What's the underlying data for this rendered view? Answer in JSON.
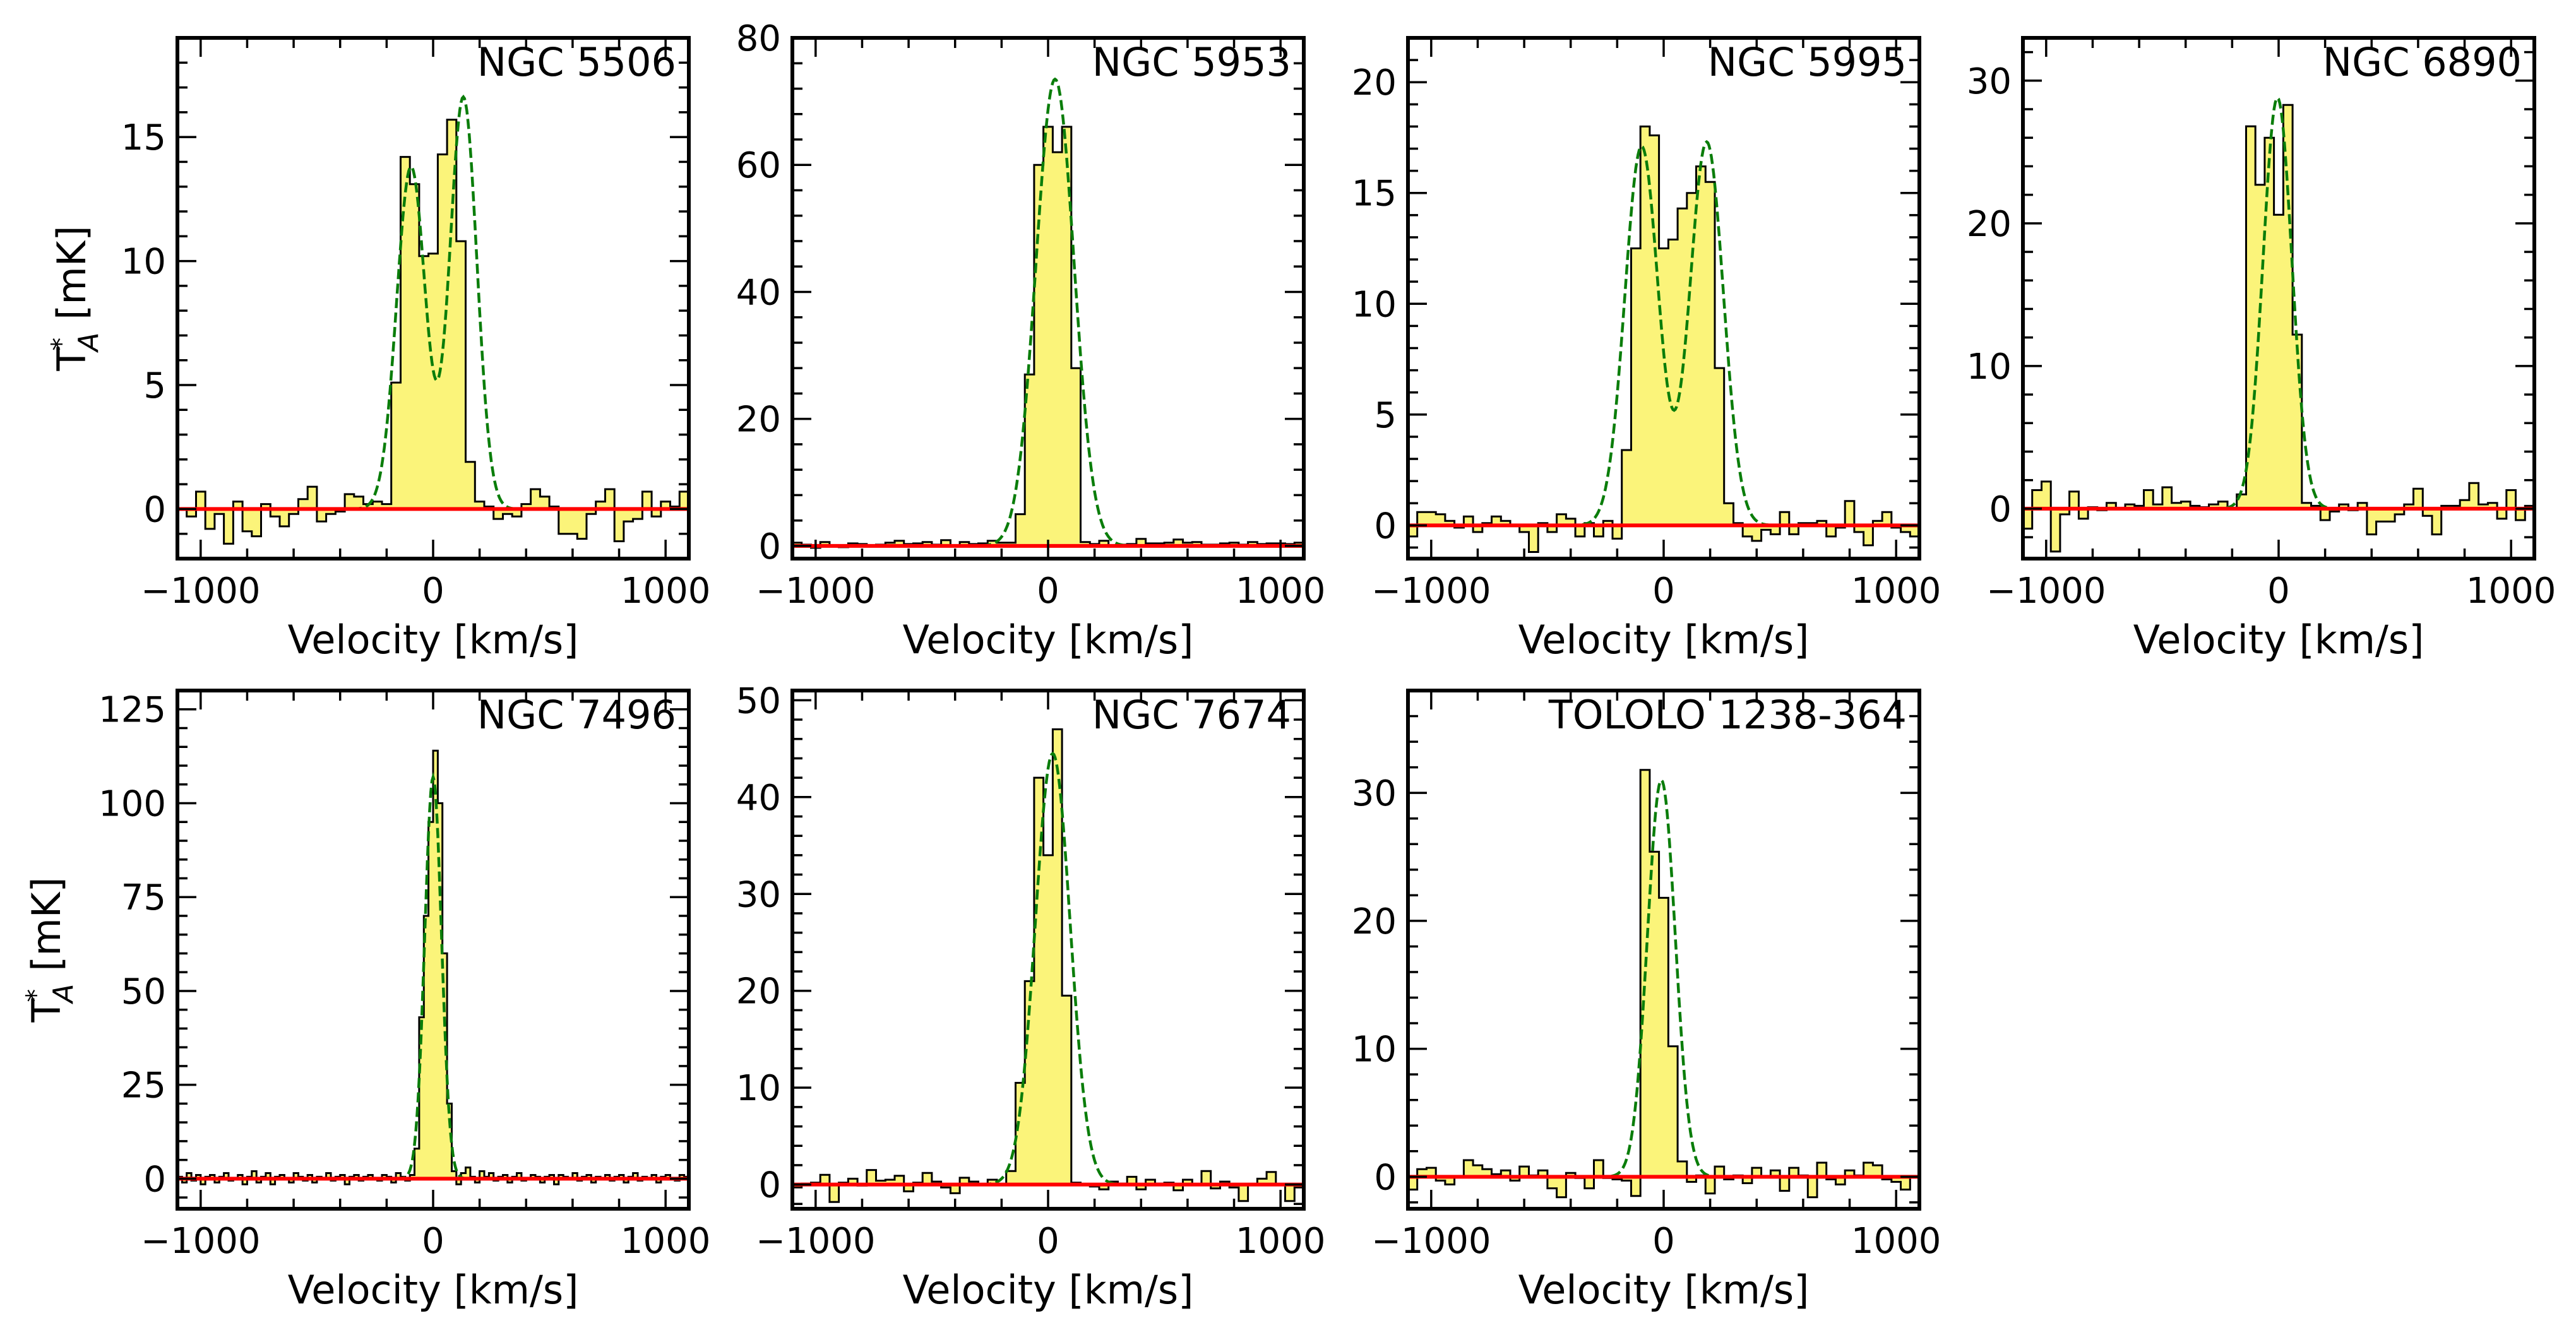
{
  "chart_data": [
    {
      "type": "step",
      "name": "NGC 5506",
      "xlabel": "Velocity [km/s]",
      "ylabel": "T*A [mK]",
      "xlim": [
        -1100,
        1100
      ],
      "ylim": [
        -2,
        19
      ],
      "yticks": [
        0,
        5,
        10,
        15
      ],
      "ytick_labels": [
        "0",
        "5",
        "10",
        "15"
      ],
      "xticks": [
        -1000,
        0,
        1000
      ],
      "xtick_labels": [
        "−1000",
        "0",
        "1000"
      ],
      "grid": false,
      "steps": {
        "x0": -1100,
        "dx": 40,
        "values": [
          0,
          -0.3,
          0.7,
          -0.8,
          -0.2,
          -1.4,
          0.3,
          -0.9,
          -1.1,
          0.2,
          -0.3,
          -0.7,
          -0.2,
          0.4,
          0.9,
          -0.5,
          -0.2,
          -0.1,
          0.6,
          0.5,
          0.2,
          0.3,
          0.2,
          5.1,
          14.2,
          13.1,
          10.2,
          10.3,
          14.3,
          15.7,
          10.8,
          1.9,
          0.3,
          0.1,
          -0.4,
          -0.2,
          -0.3,
          0.2,
          0.8,
          0.5,
          0.1,
          -1.0,
          -1.0,
          -1.2,
          -0.2,
          0.3,
          0.8,
          -1.3,
          -0.5,
          -0.4,
          0.7,
          -0.3,
          0.3,
          0.1,
          0.7
        ]
      },
      "fit": {
        "components": [
          {
            "amp": 13.8,
            "mu": -95,
            "sigma": 62
          },
          {
            "amp": 16.6,
            "mu": 130,
            "sigma": 58
          }
        ]
      },
      "baseline": 0
    },
    {
      "type": "step",
      "name": "NGC 5953",
      "xlabel": "Velocity [km/s]",
      "ylabel": "",
      "xlim": [
        -1100,
        1100
      ],
      "ylim": [
        -2,
        80
      ],
      "yticks": [
        0,
        20,
        40,
        60,
        80
      ],
      "ytick_labels": [
        "0",
        "20",
        "40",
        "60",
        "80"
      ],
      "xticks": [
        -1000,
        0,
        1000
      ],
      "xtick_labels": [
        "−1000",
        "0",
        "1000"
      ],
      "grid": false,
      "steps": {
        "x0": -1100,
        "dx": 40,
        "values": [
          0.5,
          0.2,
          -0.3,
          0.6,
          0.1,
          -0.2,
          0.4,
          0.3,
          -0.1,
          0.2,
          0.5,
          0.8,
          0.3,
          0.4,
          0.6,
          0.2,
          0.9,
          0.1,
          0.6,
          0.3,
          0.4,
          0.8,
          0.5,
          0.5,
          5.0,
          27.0,
          60.0,
          66.0,
          62.0,
          66.0,
          28.0,
          0.6,
          0.3,
          0.8,
          0.1,
          0.2,
          0.3,
          1.1,
          0.4,
          0.4,
          0.5,
          1.0,
          0.5,
          0.6,
          0.2,
          0.2,
          0.4,
          0.5,
          0.2,
          0.6,
          0.3,
          0.4,
          0.4,
          0.3,
          0.5
        ]
      },
      "fit": {
        "components": [
          {
            "amp": 73.5,
            "mu": 30,
            "sigma": 82
          }
        ]
      },
      "baseline": 0
    },
    {
      "type": "step",
      "name": "NGC 5995",
      "xlabel": "Velocity [km/s]",
      "ylabel": "",
      "xlim": [
        -1100,
        1100
      ],
      "ylim": [
        -1.5,
        22
      ],
      "yticks": [
        0,
        5,
        10,
        15,
        20
      ],
      "ytick_labels": [
        "0",
        "5",
        "10",
        "15",
        "20"
      ],
      "xticks": [
        -1000,
        0,
        1000
      ],
      "xtick_labels": [
        "−1000",
        "0",
        "1000"
      ],
      "grid": false,
      "steps": {
        "x0": -1100,
        "dx": 40,
        "values": [
          -0.5,
          0.6,
          0.6,
          0.5,
          0.2,
          -0.1,
          0.4,
          -0.3,
          0.1,
          0.4,
          0.2,
          0.0,
          -0.3,
          -1.2,
          0.1,
          -0.3,
          0.5,
          0.3,
          -0.5,
          0.1,
          -0.5,
          0.2,
          -0.6,
          3.4,
          12.5,
          18.0,
          17.6,
          12.5,
          12.9,
          14.3,
          15.0,
          16.2,
          15.5,
          7.1,
          1.0,
          0.1,
          -0.5,
          -0.7,
          -0.2,
          -0.4,
          0.6,
          -0.4,
          0.1,
          0.1,
          0.2,
          -0.5,
          -0.1,
          1.1,
          -0.3,
          -0.9,
          0.2,
          0.6,
          -0.1,
          -0.3,
          -0.5
        ]
      },
      "fit": {
        "components": [
          {
            "amp": 17.1,
            "mu": -95,
            "sigma": 72
          },
          {
            "amp": 17.3,
            "mu": 185,
            "sigma": 72
          }
        ]
      },
      "baseline": 0
    },
    {
      "type": "step",
      "name": "NGC 6890",
      "xlabel": "Velocity [km/s]",
      "ylabel": "",
      "xlim": [
        -1100,
        1100
      ],
      "ylim": [
        -3.5,
        33
      ],
      "yticks": [
        0,
        10,
        20,
        30
      ],
      "ytick_labels": [
        "0",
        "10",
        "20",
        "30"
      ],
      "xticks": [
        -1000,
        0,
        1000
      ],
      "xtick_labels": [
        "−1000",
        "0",
        "1000"
      ],
      "grid": false,
      "steps": {
        "x0": -1100,
        "dx": 40,
        "values": [
          -1.4,
          1.3,
          1.9,
          -3.0,
          -0.4,
          1.2,
          -0.7,
          0.1,
          -0.1,
          0.4,
          0.0,
          0.3,
          0.2,
          1.3,
          0.3,
          1.5,
          0.4,
          0.5,
          0.2,
          0.1,
          0.3,
          0.5,
          0.0,
          1.0,
          26.8,
          22.7,
          26.0,
          20.6,
          28.3,
          12.2,
          0.4,
          0.2,
          -0.8,
          -0.2,
          0.3,
          -0.1,
          0.4,
          -1.8,
          -0.9,
          -0.9,
          -0.4,
          0.3,
          1.4,
          -0.5,
          -1.8,
          0.2,
          0.2,
          0.6,
          1.8,
          0.3,
          0.4,
          -0.7,
          1.3,
          -0.8,
          0.2
        ]
      },
      "fit": {
        "components": [
          {
            "amp": 28.8,
            "mu": -5,
            "sigma": 62
          }
        ]
      },
      "baseline": 0
    },
    {
      "type": "step",
      "name": "NGC 7496",
      "xlabel": "Velocity [km/s]",
      "ylabel": "T*A [mK]",
      "xlim": [
        -1100,
        1100
      ],
      "ylim": [
        -8,
        130
      ],
      "yticks": [
        0,
        25,
        50,
        75,
        100,
        125
      ],
      "ytick_labels": [
        "0",
        "25",
        "50",
        "75",
        "100",
        "125"
      ],
      "xticks": [
        -1000,
        0,
        1000
      ],
      "xtick_labels": [
        "−1000",
        "0",
        "1000"
      ],
      "grid": false,
      "steps": {
        "x0": -1100,
        "dx": 20,
        "values": [
          0.5,
          -1.0,
          1.5,
          -0.5,
          1.0,
          -1.5,
          0.5,
          1.0,
          -1.0,
          0.5,
          1.5,
          -0.5,
          0.0,
          1.0,
          -1.5,
          0.5,
          2.0,
          -1.0,
          0.5,
          1.5,
          -1.5,
          0.5,
          1.0,
          0.0,
          -1.0,
          1.5,
          0.5,
          -0.5,
          1.0,
          -1.0,
          0.5,
          0.0,
          1.5,
          -0.5,
          0.5,
          1.0,
          -1.5,
          0.5,
          1.0,
          -0.5,
          0.5,
          1.0,
          0.0,
          -0.5,
          1.0,
          0.5,
          -1.0,
          1.5,
          0.5,
          -0.5,
          1.0,
          8.0,
          43.0,
          70.0,
          95.0,
          114.0,
          100.0,
          60.0,
          20.0,
          2.0,
          -1.5,
          1.5,
          3.0,
          0.5,
          -1.0,
          2.0,
          0.5,
          1.5,
          -0.5,
          0.5,
          1.0,
          -1.0,
          0.5,
          1.5,
          -0.5,
          0.0,
          1.0,
          0.5,
          -1.0,
          0.5,
          1.0,
          -1.5,
          1.0,
          0.5,
          0.0,
          1.5,
          -0.5,
          0.5,
          1.0,
          -1.0,
          0.5,
          0.0,
          1.0,
          -0.5,
          0.5,
          1.0,
          -1.0,
          0.5,
          1.5,
          -0.5,
          0.5,
          0.0,
          1.0,
          -1.0,
          0.5,
          1.0,
          0.0,
          -0.5,
          1.0,
          0.5
        ]
      },
      "fit": {
        "components": [
          {
            "amp": 107,
            "mu": 0,
            "sigma": 36
          }
        ]
      },
      "baseline": 0
    },
    {
      "type": "step",
      "name": "NGC 7674",
      "xlabel": "Velocity [km/s]",
      "ylabel": "",
      "xlim": [
        -1100,
        1100
      ],
      "ylim": [
        -2.5,
        51
      ],
      "yticks": [
        0,
        10,
        20,
        30,
        40,
        50
      ],
      "ytick_labels": [
        "0",
        "10",
        "20",
        "30",
        "40",
        "50"
      ],
      "xticks": [
        -1000,
        0,
        1000
      ],
      "xtick_labels": [
        "−1000",
        "0",
        "1000"
      ],
      "grid": false,
      "steps": {
        "x0": -1100,
        "dx": 40,
        "values": [
          -0.3,
          0.1,
          0.2,
          1.0,
          -1.8,
          0.2,
          0.6,
          -0.1,
          1.5,
          0.4,
          0.5,
          0.9,
          -0.7,
          0.2,
          1.2,
          0.3,
          -0.3,
          -0.9,
          0.7,
          0.3,
          0.0,
          0.5,
          0.0,
          1.4,
          10.5,
          21.0,
          42.0,
          34.0,
          47.0,
          19.5,
          0.2,
          0.0,
          -0.2,
          -0.5,
          0.3,
          0.1,
          0.8,
          -0.5,
          0.5,
          0.1,
          0.2,
          -0.6,
          0.5,
          0.0,
          1.4,
          -0.4,
          0.3,
          -0.3,
          -1.7,
          0.0,
          0.6,
          1.3,
          0.0,
          -1.7,
          -0.3
        ]
      },
      "fit": {
        "components": [
          {
            "amp": 44.5,
            "mu": 20,
            "sigma": 75
          }
        ]
      },
      "baseline": 0
    },
    {
      "type": "step",
      "name": "TOLOLO 1238-364",
      "xlabel": "Velocity [km/s]",
      "ylabel": "",
      "xlim": [
        -1100,
        1100
      ],
      "ylim": [
        -2.5,
        38
      ],
      "yticks": [
        0,
        10,
        20,
        30
      ],
      "ytick_labels": [
        "0",
        "10",
        "20",
        "30"
      ],
      "xticks": [
        -1000,
        0,
        1000
      ],
      "xtick_labels": [
        "−1000",
        "0",
        "1000"
      ],
      "grid": false,
      "steps": {
        "x0": -1100,
        "dx": 40,
        "values": [
          -1.0,
          0.6,
          0.7,
          -0.3,
          -0.6,
          0.0,
          1.3,
          0.9,
          0.6,
          0.2,
          0.5,
          -0.3,
          0.8,
          0.1,
          0.5,
          -0.9,
          -1.6,
          0.3,
          -0.1,
          -0.9,
          1.3,
          -0.1,
          -0.2,
          -0.3,
          -1.5,
          31.8,
          25.4,
          21.8,
          10.2,
          1.2,
          -0.4,
          0.1,
          -1.3,
          0.8,
          -0.2,
          0.1,
          -0.5,
          0.7,
          0.0,
          0.5,
          -1.1,
          0.7,
          0.1,
          -1.6,
          1.1,
          -0.2,
          -0.6,
          0.5,
          0.1,
          1.1,
          0.9,
          -0.2,
          -0.4,
          -1.0,
          0.0
        ]
      },
      "fit": {
        "components": [
          {
            "amp": 31.0,
            "mu": -10,
            "sigma": 60
          }
        ]
      },
      "baseline": 0
    }
  ],
  "colors": {
    "fill": "#fbf47a",
    "step": "#000000",
    "fit": "#0a7d0a",
    "baseline": "#ff0000",
    "axes": "#000000"
  }
}
